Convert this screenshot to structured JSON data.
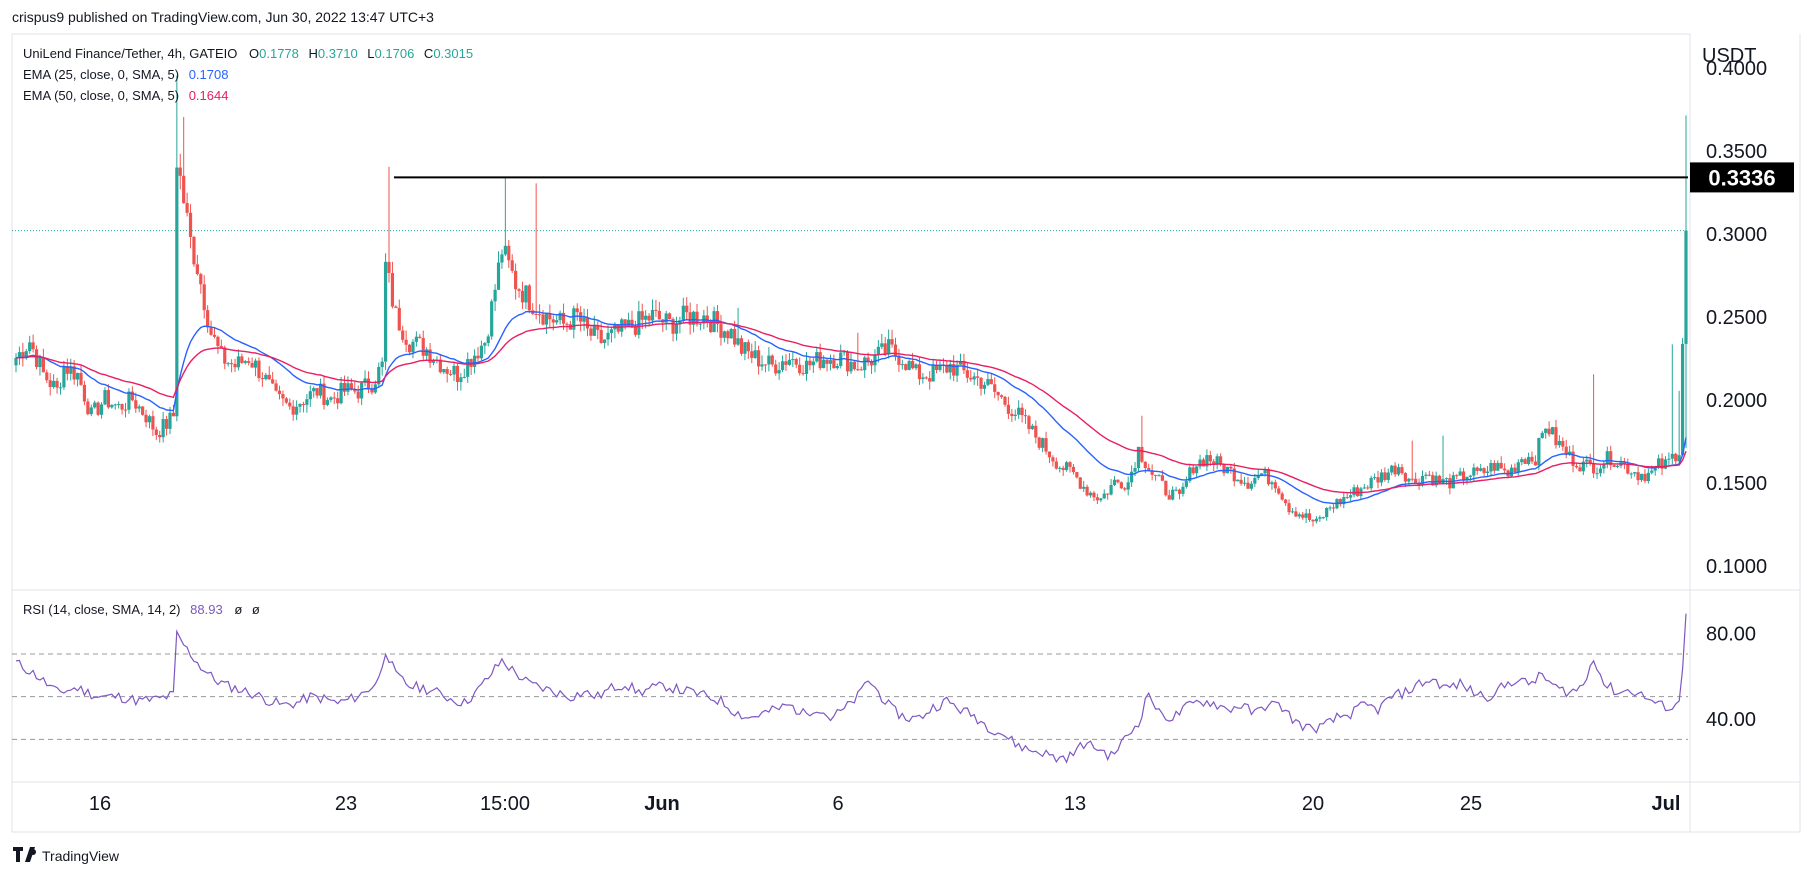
{
  "header": {
    "published": "crispus9 published on TradingView.com, Jun 30, 2022 13:47 UTC+3"
  },
  "legend": {
    "symbol": "UniLend Finance/Tether, 4h, GATEIO",
    "o_label": "O",
    "o": "0.1778",
    "h_label": "H",
    "h": "0.3710",
    "l_label": "L",
    "l": "0.1706",
    "c_label": "C",
    "c": "0.3015",
    "ema25_label": "EMA (25, close, 0, SMA, 5)",
    "ema25_value": "0.1708",
    "ema50_label": "EMA (50, close, 0, SMA, 5)",
    "ema50_value": "0.1644",
    "rsi_label": "RSI (14, close, SMA, 14, 2)",
    "rsi_value": "88.93",
    "rsi_extra1": "ø",
    "rsi_extra2": "ø"
  },
  "footer": {
    "brand": "TradingView"
  },
  "colors": {
    "up": "#26a69a",
    "down": "#ef5350",
    "ema25": "#2962ff",
    "ema50": "#e91e63",
    "rsi": "#7e57c2",
    "grid": "#e0e3eb",
    "text": "#131722",
    "accent": "#000000"
  },
  "chart_data": [
    {
      "type": "candlestick",
      "title": "UniLend Finance/Tether, 4h, GATEIO",
      "ylabel": "USDT",
      "ylim": [
        0.085,
        0.42
      ],
      "yticks": [
        "0.1000",
        "0.1500",
        "0.2000",
        "0.2500",
        "0.3000",
        "0.3500",
        "0.4000"
      ],
      "xticks": [
        "16",
        "23",
        "15:00",
        "Jun",
        "6",
        "13",
        "20",
        "25",
        "Jul"
      ],
      "horizontal_line": {
        "value": 0.3336,
        "label": "0.3336"
      },
      "last_price": 0.3015,
      "close_path": [
        [
          0,
          0.225
        ],
        [
          4,
          0.235
        ],
        [
          8,
          0.215
        ],
        [
          12,
          0.205
        ],
        [
          14,
          0.22
        ],
        [
          18,
          0.215
        ],
        [
          22,
          0.19
        ],
        [
          26,
          0.2
        ],
        [
          30,
          0.195
        ],
        [
          34,
          0.2
        ],
        [
          38,
          0.19
        ],
        [
          41,
          0.18
        ],
        [
          44,
          0.185
        ],
        [
          46,
          0.19
        ],
        [
          47,
          0.345
        ],
        [
          49,
          0.32
        ],
        [
          51,
          0.295
        ],
        [
          53,
          0.28
        ],
        [
          55,
          0.26
        ],
        [
          57,
          0.24
        ],
        [
          60,
          0.225
        ],
        [
          64,
          0.22
        ],
        [
          68,
          0.225
        ],
        [
          72,
          0.215
        ],
        [
          76,
          0.2
        ],
        [
          80,
          0.195
        ],
        [
          84,
          0.2
        ],
        [
          88,
          0.205
        ],
        [
          92,
          0.2
        ],
        [
          96,
          0.205
        ],
        [
          100,
          0.205
        ],
        [
          104,
          0.21
        ],
        [
          107,
          0.22
        ],
        [
          108,
          0.28
        ],
        [
          111,
          0.25
        ],
        [
          115,
          0.235
        ],
        [
          120,
          0.23
        ],
        [
          125,
          0.22
        ],
        [
          129,
          0.215
        ],
        [
          133,
          0.225
        ],
        [
          137,
          0.235
        ],
        [
          139,
          0.255
        ],
        [
          142,
          0.29
        ],
        [
          146,
          0.27
        ],
        [
          150,
          0.26
        ],
        [
          155,
          0.25
        ],
        [
          160,
          0.245
        ],
        [
          164,
          0.25
        ],
        [
          167,
          0.24
        ],
        [
          171,
          0.235
        ],
        [
          176,
          0.24
        ],
        [
          181,
          0.245
        ],
        [
          186,
          0.25
        ],
        [
          191,
          0.245
        ],
        [
          196,
          0.25
        ],
        [
          201,
          0.25
        ],
        [
          205,
          0.245
        ],
        [
          209,
          0.24
        ],
        [
          212,
          0.23
        ],
        [
          216,
          0.225
        ],
        [
          221,
          0.22
        ],
        [
          226,
          0.225
        ],
        [
          231,
          0.22
        ],
        [
          236,
          0.225
        ],
        [
          241,
          0.225
        ],
        [
          246,
          0.22
        ],
        [
          251,
          0.225
        ],
        [
          255,
          0.23
        ],
        [
          259,
          0.225
        ],
        [
          263,
          0.215
        ],
        [
          268,
          0.215
        ],
        [
          273,
          0.22
        ],
        [
          278,
          0.215
        ],
        [
          283,
          0.21
        ],
        [
          288,
          0.2
        ],
        [
          293,
          0.19
        ],
        [
          297,
          0.18
        ],
        [
          301,
          0.17
        ],
        [
          305,
          0.16
        ],
        [
          309,
          0.155
        ],
        [
          313,
          0.145
        ],
        [
          317,
          0.14
        ],
        [
          321,
          0.15
        ],
        [
          325,
          0.15
        ],
        [
          328,
          0.17
        ],
        [
          332,
          0.155
        ],
        [
          336,
          0.145
        ],
        [
          340,
          0.14
        ],
        [
          344,
          0.16
        ],
        [
          348,
          0.165
        ],
        [
          352,
          0.16
        ],
        [
          356,
          0.155
        ],
        [
          360,
          0.15
        ],
        [
          364,
          0.155
        ],
        [
          368,
          0.15
        ],
        [
          372,
          0.135
        ],
        [
          376,
          0.13
        ],
        [
          380,
          0.125
        ],
        [
          384,
          0.135
        ],
        [
          388,
          0.14
        ],
        [
          392,
          0.145
        ],
        [
          396,
          0.15
        ],
        [
          400,
          0.155
        ],
        [
          404,
          0.16
        ],
        [
          408,
          0.15
        ],
        [
          412,
          0.155
        ],
        [
          416,
          0.15
        ],
        [
          420,
          0.15
        ],
        [
          424,
          0.155
        ],
        [
          428,
          0.155
        ],
        [
          432,
          0.16
        ],
        [
          436,
          0.155
        ],
        [
          440,
          0.165
        ],
        [
          444,
          0.165
        ],
        [
          447,
          0.185
        ],
        [
          450,
          0.175
        ],
        [
          454,
          0.165
        ],
        [
          458,
          0.16
        ],
        [
          462,
          0.16
        ],
        [
          466,
          0.165
        ],
        [
          470,
          0.16
        ],
        [
          474,
          0.155
        ],
        [
          478,
          0.155
        ],
        [
          480,
          0.16
        ],
        [
          482,
          0.16
        ],
        [
          484,
          0.165
        ],
        [
          486,
          0.17
        ],
        [
          488,
          0.3015
        ]
      ],
      "spikes": [
        {
          "index": 47,
          "high": 0.395
        },
        {
          "index": 49,
          "high": 0.37
        },
        {
          "index": 109,
          "high": 0.34
        },
        {
          "index": 143,
          "high": 0.333
        },
        {
          "index": 152,
          "high": 0.33
        },
        {
          "index": 211,
          "high": 0.255
        },
        {
          "index": 246,
          "high": 0.24
        },
        {
          "index": 329,
          "high": 0.19
        },
        {
          "index": 408,
          "high": 0.175
        },
        {
          "index": 417,
          "high": 0.178
        },
        {
          "index": 461,
          "high": 0.215
        },
        {
          "index": 484,
          "high": 0.233
        },
        {
          "index": 486,
          "high": 0.205
        },
        {
          "index": 488,
          "high": 0.371
        }
      ],
      "series": [
        {
          "name": "EMA (25, close, 0, SMA, 5)",
          "color": "#2962ff",
          "last": 0.1708
        },
        {
          "name": "EMA (50, close, 0, SMA, 5)",
          "color": "#e91e63",
          "last": 0.1644
        }
      ]
    },
    {
      "type": "line",
      "title": "RSI (14, close, SMA, 14, 2)",
      "ylim": [
        10,
        100
      ],
      "yticks": [
        "40.00",
        "80.00"
      ],
      "bands": [
        70,
        50,
        30
      ],
      "last": 88.93,
      "points": [
        [
          0,
          66
        ],
        [
          6,
          60
        ],
        [
          12,
          52
        ],
        [
          18,
          54
        ],
        [
          24,
          50
        ],
        [
          30,
          50
        ],
        [
          36,
          48
        ],
        [
          42,
          49
        ],
        [
          46,
          51
        ],
        [
          47,
          79
        ],
        [
          50,
          72
        ],
        [
          54,
          64
        ],
        [
          58,
          58
        ],
        [
          62,
          55
        ],
        [
          66,
          53
        ],
        [
          70,
          51
        ],
        [
          74,
          48
        ],
        [
          78,
          46
        ],
        [
          82,
          47
        ],
        [
          86,
          50
        ],
        [
          90,
          49
        ],
        [
          94,
          47
        ],
        [
          98,
          49
        ],
        [
          102,
          52
        ],
        [
          106,
          58
        ],
        [
          108,
          72
        ],
        [
          111,
          60
        ],
        [
          115,
          55
        ],
        [
          119,
          54
        ],
        [
          123,
          52
        ],
        [
          127,
          49
        ],
        [
          131,
          47
        ],
        [
          135,
          53
        ],
        [
          139,
          61
        ],
        [
          142,
          67
        ],
        [
          146,
          61
        ],
        [
          150,
          56
        ],
        [
          154,
          54
        ],
        [
          158,
          52
        ],
        [
          162,
          50
        ],
        [
          166,
          52
        ],
        [
          170,
          50
        ],
        [
          174,
          54
        ],
        [
          178,
          56
        ],
        [
          182,
          52
        ],
        [
          186,
          54
        ],
        [
          190,
          55
        ],
        [
          194,
          53
        ],
        [
          198,
          52
        ],
        [
          202,
          50
        ],
        [
          206,
          48
        ],
        [
          210,
          43
        ],
        [
          214,
          40
        ],
        [
          218,
          42
        ],
        [
          222,
          44
        ],
        [
          226,
          46
        ],
        [
          230,
          42
        ],
        [
          234,
          45
        ],
        [
          238,
          40
        ],
        [
          242,
          44
        ],
        [
          246,
          50
        ],
        [
          249,
          58
        ],
        [
          252,
          52
        ],
        [
          256,
          44
        ],
        [
          260,
          40
        ],
        [
          264,
          40
        ],
        [
          268,
          45
        ],
        [
          272,
          48
        ],
        [
          276,
          44
        ],
        [
          280,
          41
        ],
        [
          284,
          36
        ],
        [
          288,
          33
        ],
        [
          292,
          28
        ],
        [
          296,
          25
        ],
        [
          300,
          24
        ],
        [
          304,
          21
        ],
        [
          308,
          22
        ],
        [
          312,
          28
        ],
        [
          316,
          26
        ],
        [
          320,
          22
        ],
        [
          324,
          30
        ],
        [
          328,
          38
        ],
        [
          331,
          52
        ],
        [
          334,
          42
        ],
        [
          338,
          40
        ],
        [
          342,
          45
        ],
        [
          346,
          48
        ],
        [
          350,
          47
        ],
        [
          354,
          44
        ],
        [
          358,
          46
        ],
        [
          362,
          42
        ],
        [
          366,
          47
        ],
        [
          370,
          45
        ],
        [
          374,
          38
        ],
        [
          378,
          35
        ],
        [
          382,
          36
        ],
        [
          386,
          40
        ],
        [
          390,
          42
        ],
        [
          394,
          46
        ],
        [
          398,
          44
        ],
        [
          402,
          50
        ],
        [
          406,
          52
        ],
        [
          410,
          56
        ],
        [
          414,
          58
        ],
        [
          418,
          54
        ],
        [
          422,
          56
        ],
        [
          426,
          52
        ],
        [
          430,
          50
        ],
        [
          434,
          54
        ],
        [
          438,
          58
        ],
        [
          442,
          56
        ],
        [
          446,
          60
        ],
        [
          450,
          54
        ],
        [
          454,
          52
        ],
        [
          458,
          55
        ],
        [
          461,
          69
        ],
        [
          464,
          56
        ],
        [
          468,
          52
        ],
        [
          472,
          53
        ],
        [
          476,
          50
        ],
        [
          480,
          46
        ],
        [
          484,
          45
        ],
        [
          486,
          48
        ],
        [
          487,
          63
        ],
        [
          488,
          88.93
        ]
      ]
    }
  ]
}
